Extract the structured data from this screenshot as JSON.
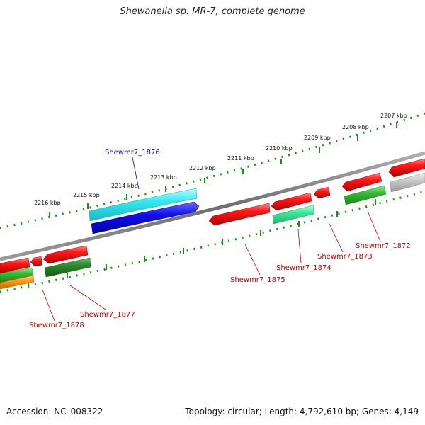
{
  "title": "Shewanella sp. MR-7, complete genome",
  "footer": {
    "accession": "Accession: NC_008322",
    "summary": "Topology: circular; Length: 4,792,610 bp; Genes: 4,149"
  },
  "colors": {
    "backbone": "#808080",
    "tick": "#1f8a1f",
    "label_forward": "#cc0000",
    "label_highlight": "#0000cc"
  },
  "kbp_labels": [
    "2207 kbp",
    "2208 kbp",
    "2209 kbp",
    "2210 kbp",
    "2211 kbp",
    "2212 kbp",
    "2213 kbp",
    "2214 kbp",
    "2215 kbp",
    "2216 kbp"
  ],
  "gene_labels": {
    "g1872": "Shewmr7_1872",
    "g1873": "Shewmr7_1873",
    "g1874": "Shewmr7_1874",
    "g1875": "Shewmr7_1875",
    "g1876": "Shewmr7_1876",
    "g1877": "Shewmr7_1877",
    "g1878": "Shewmr7_1878"
  }
}
